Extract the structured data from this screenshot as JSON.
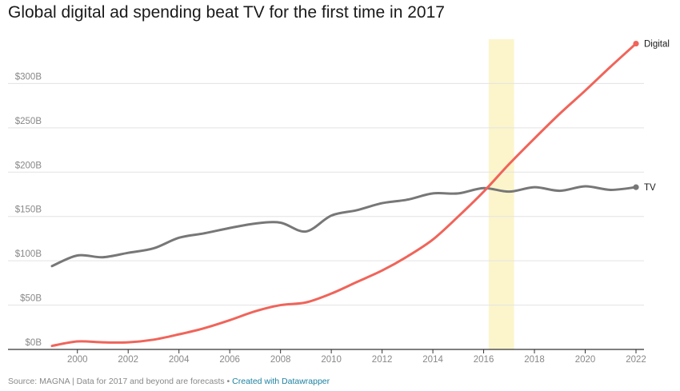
{
  "title": "Global digital ad spending beat TV for the first time in 2017",
  "footer": {
    "source": "Source: MAGNA | Data for 2017 and beyond are forecasts",
    "separator": " • ",
    "credit": "Created with Datawrapper"
  },
  "colors": {
    "digital": "#f0645a",
    "tv": "#777777",
    "highlight": "#fcf5cc",
    "grid": "#e3e3e3",
    "axis": "#333333"
  },
  "chart_data": {
    "type": "line",
    "title": "Global digital ad spending beat TV for the first time in 2017",
    "xlabel": "",
    "ylabel": "",
    "xlim": [
      1999,
      2022
    ],
    "ylim": [
      0,
      350
    ],
    "x_ticks": [
      2000,
      2002,
      2004,
      2006,
      2008,
      2010,
      2012,
      2014,
      2016,
      2018,
      2020,
      2022
    ],
    "y_ticks": [
      {
        "value": 0,
        "label": "$0B"
      },
      {
        "value": 50,
        "label": "$50B"
      },
      {
        "value": 100,
        "label": "$100B"
      },
      {
        "value": 150,
        "label": "$150B"
      },
      {
        "value": 200,
        "label": "$200B"
      },
      {
        "value": 250,
        "label": "$250B"
      },
      {
        "value": 300,
        "label": "$300B"
      }
    ],
    "highlight_band": {
      "from": 2016.2,
      "to": 2017.2
    },
    "series": [
      {
        "name": "TV",
        "label": "TV",
        "x": [
          1999,
          2000,
          2001,
          2002,
          2003,
          2004,
          2005,
          2006,
          2007,
          2008,
          2009,
          2010,
          2011,
          2012,
          2013,
          2014,
          2015,
          2016,
          2017,
          2018,
          2019,
          2020,
          2021,
          2022
        ],
        "values": [
          94,
          106,
          104,
          109,
          114,
          126,
          131,
          137,
          142,
          143,
          133,
          151,
          157,
          165,
          169,
          176,
          176,
          182,
          178,
          183,
          179,
          184,
          180,
          183
        ]
      },
      {
        "name": "Digital",
        "label": "Digital",
        "x": [
          1999,
          2000,
          2001,
          2002,
          2003,
          2004,
          2005,
          2006,
          2007,
          2008,
          2009,
          2010,
          2011,
          2012,
          2013,
          2014,
          2015,
          2016,
          2017,
          2018,
          2019,
          2020,
          2021,
          2022
        ],
        "values": [
          4,
          9,
          8,
          8,
          11,
          17,
          24,
          33,
          43,
          50,
          53,
          63,
          76,
          89,
          105,
          124,
          150,
          178,
          209,
          238,
          266,
          292,
          319,
          345
        ]
      }
    ]
  }
}
